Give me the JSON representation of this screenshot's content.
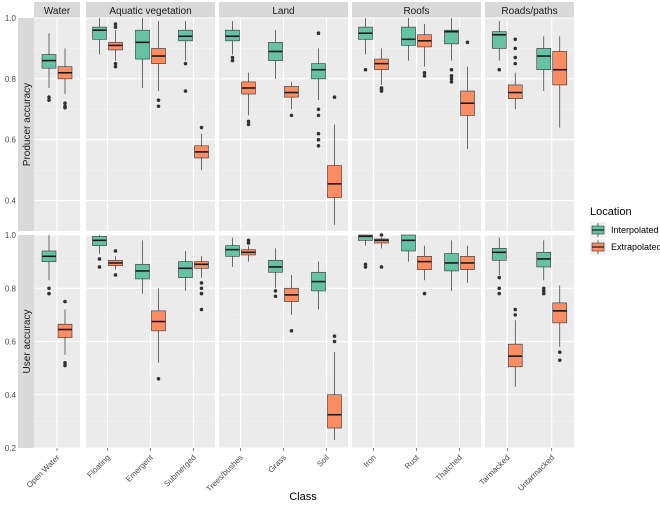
{
  "chart_data": {
    "type": "boxplot",
    "xlabel": "Class",
    "legend": {
      "title": "Location",
      "position": "right",
      "entries": [
        {
          "name": "Interpolated",
          "color": "#66C2A5"
        },
        {
          "name": "Extrapolated",
          "color": "#FC8D62"
        }
      ]
    },
    "column_facets": [
      "Water",
      "Aquatic vegetation",
      "Land",
      "Roofs",
      "Roads/paths"
    ],
    "row_facets": [
      {
        "label": "Producer accuracy",
        "ylim": [
          0.3,
          1.0
        ],
        "yticks": [
          "0.4",
          "0.6",
          "0.8",
          "1.0"
        ],
        "ytick_values": [
          0.4,
          0.6,
          0.8,
          1.0
        ]
      },
      {
        "label": "User accuracy",
        "ylim": [
          0.2,
          1.0
        ],
        "yticks": [
          "0.2",
          "0.4",
          "0.6",
          "0.8",
          "1.0"
        ],
        "ytick_values": [
          0.2,
          0.4,
          0.6,
          0.8,
          1.0
        ]
      }
    ],
    "classes": [
      {
        "name": "Open Water",
        "facet": "Water"
      },
      {
        "name": "Floating",
        "facet": "Aquatic vegetation"
      },
      {
        "name": "Emergent",
        "facet": "Aquatic vegetation"
      },
      {
        "name": "Submerged",
        "facet": "Aquatic vegetation"
      },
      {
        "name": "Trees/bushes",
        "facet": "Land"
      },
      {
        "name": "Grass",
        "facet": "Land"
      },
      {
        "name": "Soil",
        "facet": "Land"
      },
      {
        "name": "Iron",
        "facet": "Roofs"
      },
      {
        "name": "Rust",
        "facet": "Roofs"
      },
      {
        "name": "Thatched",
        "facet": "Roofs"
      },
      {
        "name": "Tarmacked",
        "facet": "Roads/paths"
      },
      {
        "name": "Untarmacked",
        "facet": "Roads/paths"
      }
    ],
    "boxes": {
      "Producer accuracy": {
        "Open Water": {
          "Interpolated": {
            "min": 0.77,
            "q1": 0.835,
            "median": 0.86,
            "q3": 0.88,
            "max": 0.95,
            "outliers": [
              0.74,
              0.73
            ]
          },
          "Extrapolated": {
            "min": 0.75,
            "q1": 0.8,
            "median": 0.82,
            "q3": 0.84,
            "max": 0.9,
            "outliers": [
              0.72,
              0.71,
              0.705
            ]
          }
        },
        "Floating": {
          "Interpolated": {
            "min": 0.88,
            "q1": 0.93,
            "median": 0.96,
            "q3": 0.97,
            "max": 1.0,
            "outliers": []
          },
          "Extrapolated": {
            "min": 0.86,
            "q1": 0.895,
            "median": 0.91,
            "q3": 0.92,
            "max": 0.96,
            "outliers": [
              0.98,
              0.97,
              0.85,
              0.84
            ]
          }
        },
        "Emergent": {
          "Interpolated": {
            "min": 0.77,
            "q1": 0.865,
            "median": 0.92,
            "q3": 0.96,
            "max": 1.0,
            "outliers": []
          },
          "Extrapolated": {
            "min": 0.76,
            "q1": 0.85,
            "median": 0.875,
            "q3": 0.9,
            "max": 0.99,
            "outliers": [
              0.73,
              0.71
            ]
          }
        },
        "Submerged": {
          "Interpolated": {
            "min": 0.86,
            "q1": 0.925,
            "median": 0.94,
            "q3": 0.96,
            "max": 0.99,
            "outliers": [
              0.85,
              0.76
            ]
          },
          "Extrapolated": {
            "min": 0.5,
            "q1": 0.54,
            "median": 0.56,
            "q3": 0.58,
            "max": 0.62,
            "outliers": [
              0.64
            ]
          }
        },
        "Trees/bushes": {
          "Interpolated": {
            "min": 0.88,
            "q1": 0.925,
            "median": 0.94,
            "q3": 0.96,
            "max": 0.99,
            "outliers": [
              0.87,
              0.86
            ]
          },
          "Extrapolated": {
            "min": 0.68,
            "q1": 0.75,
            "median": 0.77,
            "q3": 0.79,
            "max": 0.82,
            "outliers": [
              0.66,
              0.65
            ]
          }
        },
        "Grass": {
          "Interpolated": {
            "min": 0.8,
            "q1": 0.86,
            "median": 0.89,
            "q3": 0.92,
            "max": 0.96,
            "outliers": []
          },
          "Extrapolated": {
            "min": 0.7,
            "q1": 0.74,
            "median": 0.755,
            "q3": 0.775,
            "max": 0.79,
            "outliers": [
              0.68
            ]
          }
        },
        "Soil": {
          "Interpolated": {
            "min": 0.73,
            "q1": 0.8,
            "median": 0.83,
            "q3": 0.85,
            "max": 0.9,
            "outliers": [
              0.95,
              0.7,
              0.68,
              0.62,
              0.6,
              0.58
            ]
          },
          "Extrapolated": {
            "min": 0.32,
            "q1": 0.41,
            "median": 0.455,
            "q3": 0.515,
            "max": 0.65,
            "outliers": [
              0.74
            ]
          }
        },
        "Iron": {
          "Interpolated": {
            "min": 0.88,
            "q1": 0.93,
            "median": 0.95,
            "q3": 0.97,
            "max": 1.0,
            "outliers": [
              0.83
            ]
          },
          "Extrapolated": {
            "min": 0.78,
            "q1": 0.83,
            "median": 0.85,
            "q3": 0.865,
            "max": 0.9,
            "outliers": [
              0.77,
              0.765,
              0.76
            ]
          }
        },
        "Rust": {
          "Interpolated": {
            "min": 0.86,
            "q1": 0.91,
            "median": 0.93,
            "q3": 0.97,
            "max": 1.0,
            "outliers": []
          },
          "Extrapolated": {
            "min": 0.84,
            "q1": 0.905,
            "median": 0.925,
            "q3": 0.945,
            "max": 0.98,
            "outliers": [
              0.82,
              0.81
            ]
          }
        },
        "Thatched": {
          "Interpolated": {
            "min": 0.86,
            "q1": 0.915,
            "median": 0.955,
            "q3": 0.96,
            "max": 1.0,
            "outliers": [
              0.83,
              0.81,
              0.8,
              0.79
            ]
          },
          "Extrapolated": {
            "min": 0.57,
            "q1": 0.68,
            "median": 0.72,
            "q3": 0.76,
            "max": 0.84,
            "outliers": [
              0.92
            ]
          }
        },
        "Tarmacked": {
          "Interpolated": {
            "min": 0.86,
            "q1": 0.9,
            "median": 0.945,
            "q3": 0.955,
            "max": 0.99,
            "outliers": [
              0.83
            ]
          },
          "Extrapolated": {
            "min": 0.7,
            "q1": 0.735,
            "median": 0.755,
            "q3": 0.78,
            "max": 0.82,
            "outliers": [
              0.93,
              0.9,
              0.87,
              0.85
            ]
          }
        },
        "Untarmacked": {
          "Interpolated": {
            "min": 0.76,
            "q1": 0.83,
            "median": 0.875,
            "q3": 0.9,
            "max": 0.94,
            "outliers": []
          },
          "Extrapolated": {
            "min": 0.64,
            "q1": 0.78,
            "median": 0.83,
            "q3": 0.89,
            "max": 0.94,
            "outliers": []
          }
        }
      },
      "User accuracy": {
        "Open Water": {
          "Interpolated": {
            "min": 0.83,
            "q1": 0.9,
            "median": 0.92,
            "q3": 0.94,
            "max": 1.0,
            "outliers": [
              0.8,
              0.78
            ]
          },
          "Extrapolated": {
            "min": 0.55,
            "q1": 0.615,
            "median": 0.645,
            "q3": 0.665,
            "max": 0.72,
            "outliers": [
              0.75,
              0.52,
              0.51
            ]
          }
        },
        "Floating": {
          "Interpolated": {
            "min": 0.93,
            "q1": 0.96,
            "median": 0.98,
            "q3": 0.995,
            "max": 1.0,
            "outliers": [
              0.91,
              0.88
            ]
          },
          "Extrapolated": {
            "min": 0.87,
            "q1": 0.885,
            "median": 0.895,
            "q3": 0.905,
            "max": 0.92,
            "outliers": [
              0.94,
              0.85
            ]
          }
        },
        "Emergent": {
          "Interpolated": {
            "min": 0.78,
            "q1": 0.835,
            "median": 0.865,
            "q3": 0.89,
            "max": 0.98,
            "outliers": []
          },
          "Extrapolated": {
            "min": 0.52,
            "q1": 0.64,
            "median": 0.675,
            "q3": 0.715,
            "max": 0.8,
            "outliers": [
              0.46
            ]
          }
        },
        "Submerged": {
          "Interpolated": {
            "min": 0.79,
            "q1": 0.84,
            "median": 0.875,
            "q3": 0.9,
            "max": 0.94,
            "outliers": []
          },
          "Extrapolated": {
            "min": 0.84,
            "q1": 0.875,
            "median": 0.89,
            "q3": 0.9,
            "max": 0.92,
            "outliers": [
              0.82,
              0.8,
              0.78,
              0.72
            ]
          }
        },
        "Trees/bushes": {
          "Interpolated": {
            "min": 0.88,
            "q1": 0.92,
            "median": 0.945,
            "q3": 0.96,
            "max": 0.99,
            "outliers": []
          },
          "Extrapolated": {
            "min": 0.9,
            "q1": 0.925,
            "median": 0.935,
            "q3": 0.945,
            "max": 0.96,
            "outliers": [
              0.98,
              0.97
            ]
          }
        },
        "Grass": {
          "Interpolated": {
            "min": 0.8,
            "q1": 0.86,
            "median": 0.88,
            "q3": 0.905,
            "max": 0.95,
            "outliers": [
              0.79,
              0.77
            ]
          },
          "Extrapolated": {
            "min": 0.7,
            "q1": 0.75,
            "median": 0.775,
            "q3": 0.8,
            "max": 0.85,
            "outliers": [
              0.64
            ]
          }
        },
        "Soil": {
          "Interpolated": {
            "min": 0.72,
            "q1": 0.79,
            "median": 0.825,
            "q3": 0.86,
            "max": 0.9,
            "outliers": []
          },
          "Extrapolated": {
            "min": 0.23,
            "q1": 0.275,
            "median": 0.325,
            "q3": 0.4,
            "max": 0.56,
            "outliers": [
              0.62,
              0.6
            ]
          }
        },
        "Iron": {
          "Interpolated": {
            "min": 0.96,
            "q1": 0.98,
            "median": 0.995,
            "q3": 1.0,
            "max": 1.0,
            "outliers": [
              0.89,
              0.88
            ]
          },
          "Extrapolated": {
            "min": 0.95,
            "q1": 0.97,
            "median": 0.98,
            "q3": 0.985,
            "max": 0.99,
            "outliers": [
              1.0,
              0.88
            ]
          }
        },
        "Rust": {
          "Interpolated": {
            "min": 0.9,
            "q1": 0.94,
            "median": 0.98,
            "q3": 1.0,
            "max": 1.0,
            "outliers": []
          },
          "Extrapolated": {
            "min": 0.83,
            "q1": 0.87,
            "median": 0.9,
            "q3": 0.92,
            "max": 0.96,
            "outliers": [
              0.78
            ]
          }
        },
        "Thatched": {
          "Interpolated": {
            "min": 0.79,
            "q1": 0.865,
            "median": 0.895,
            "q3": 0.93,
            "max": 0.98,
            "outliers": []
          },
          "Extrapolated": {
            "min": 0.82,
            "q1": 0.87,
            "median": 0.895,
            "q3": 0.92,
            "max": 0.96,
            "outliers": []
          }
        },
        "Tarmacked": {
          "Interpolated": {
            "min": 0.85,
            "q1": 0.905,
            "median": 0.935,
            "q3": 0.95,
            "max": 0.99,
            "outliers": [
              0.84,
              0.8,
              0.78
            ]
          },
          "Extrapolated": {
            "min": 0.43,
            "q1": 0.505,
            "median": 0.545,
            "q3": 0.59,
            "max": 0.68,
            "outliers": [
              0.72,
              0.7
            ]
          }
        },
        "Untarmacked": {
          "Interpolated": {
            "min": 0.83,
            "q1": 0.88,
            "median": 0.91,
            "q3": 0.935,
            "max": 0.98,
            "outliers": [
              0.8,
              0.79,
              0.78
            ]
          },
          "Extrapolated": {
            "min": 0.58,
            "q1": 0.67,
            "median": 0.715,
            "q3": 0.745,
            "max": 0.81,
            "outliers": [
              0.56,
              0.53
            ]
          }
        }
      }
    }
  }
}
